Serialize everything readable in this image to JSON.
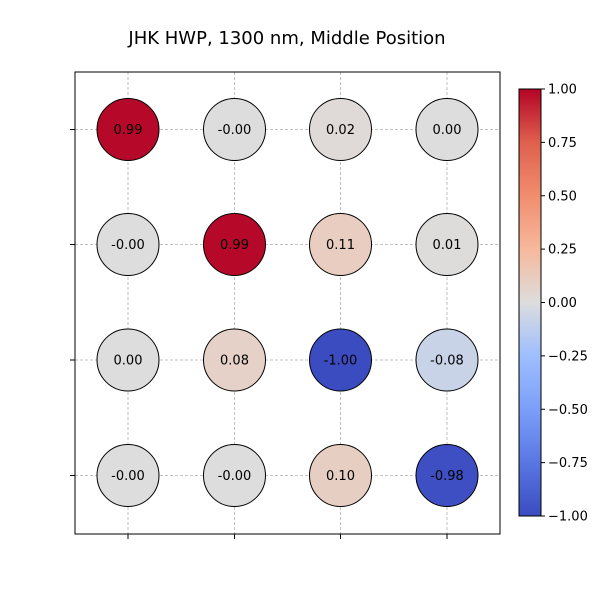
{
  "chart_data": {
    "type": "heatmap",
    "title": "JHK HWP, 1300 nm, Middle Position",
    "xlabel": "",
    "ylabel": "",
    "rows": 4,
    "cols": 4,
    "values": [
      [
        0.99,
        -0.0,
        0.02,
        0.0
      ],
      [
        -0.0,
        0.99,
        0.11,
        0.01
      ],
      [
        0.0,
        0.08,
        -1.0,
        -0.08
      ],
      [
        -0.0,
        -0.0,
        0.1,
        -0.98
      ]
    ],
    "labels": [
      [
        "0.99",
        "-0.00",
        "0.02",
        "0.00"
      ],
      [
        "-0.00",
        "0.99",
        "0.11",
        "0.01"
      ],
      [
        "0.00",
        "0.08",
        "-1.00",
        "-0.08"
      ],
      [
        "-0.00",
        "-0.00",
        "0.10",
        "-0.98"
      ]
    ],
    "colormap": "coolwarm",
    "vmin": -1.0,
    "vmax": 1.0,
    "colorbar_ticks": [
      1.0,
      0.75,
      0.5,
      0.25,
      0.0,
      -0.25,
      -0.5,
      -0.75,
      -1.0
    ],
    "colorbar_tick_labels": [
      "1.00",
      "0.75",
      "0.50",
      "0.25",
      "0.00",
      "−0.25",
      "−0.50",
      "−0.75",
      "−1.00"
    ],
    "grid": true,
    "legend": "colorbar-right"
  }
}
